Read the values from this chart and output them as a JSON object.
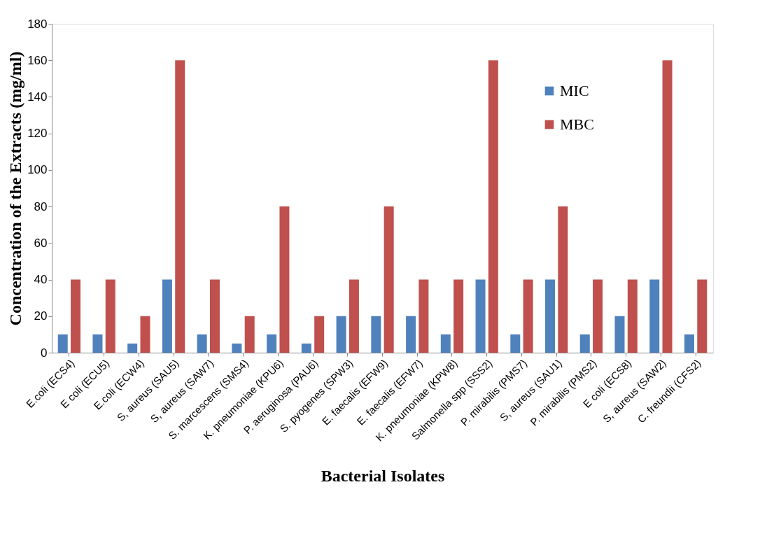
{
  "chart_data": {
    "type": "bar",
    "xlabel": "Bacterial Isolates",
    "ylabel": "Concentration of the Extracts (mg/ml)",
    "categories": [
      "E.coli (ECS4)",
      "E coli (ECU5)",
      "E.coli (ECW4)",
      "S, aureus (SAU5)",
      "S, aureus (SAW7)",
      "S. marcescens (SMS4)",
      "K. pneumoniae (KPU6)",
      "P. aeruginosa (PAU6)",
      "S. pyogenes (SPW3)",
      "E. faecalis (EFW9)",
      "E. faecalis (EFW7)",
      "K. pneumoniae (KPW8)",
      "Salmonella spp (SSS2)",
      "P. mirabilis (PMS7)",
      "S, aureus (SAU1)",
      "P. mirabilis (PMS2)",
      "E coli (ECS8)",
      "S, aureus (SAW2)",
      "C. freundii (CFS2)"
    ],
    "series": [
      {
        "name": "MIC",
        "color": "#4f81bd",
        "values": [
          10,
          10,
          5,
          40,
          10,
          5,
          10,
          5,
          20,
          20,
          20,
          10,
          40,
          10,
          40,
          10,
          20,
          40,
          10
        ]
      },
      {
        "name": "MBC",
        "color": "#c0504d",
        "values": [
          40,
          40,
          20,
          160,
          40,
          20,
          80,
          20,
          40,
          80,
          40,
          40,
          160,
          40,
          80,
          40,
          40,
          160,
          40
        ]
      }
    ],
    "ylim": [
      0,
      180
    ],
    "yticks": [
      0,
      20,
      40,
      60,
      80,
      100,
      120,
      140,
      160,
      180
    ],
    "grid": false,
    "legend": "top right"
  }
}
